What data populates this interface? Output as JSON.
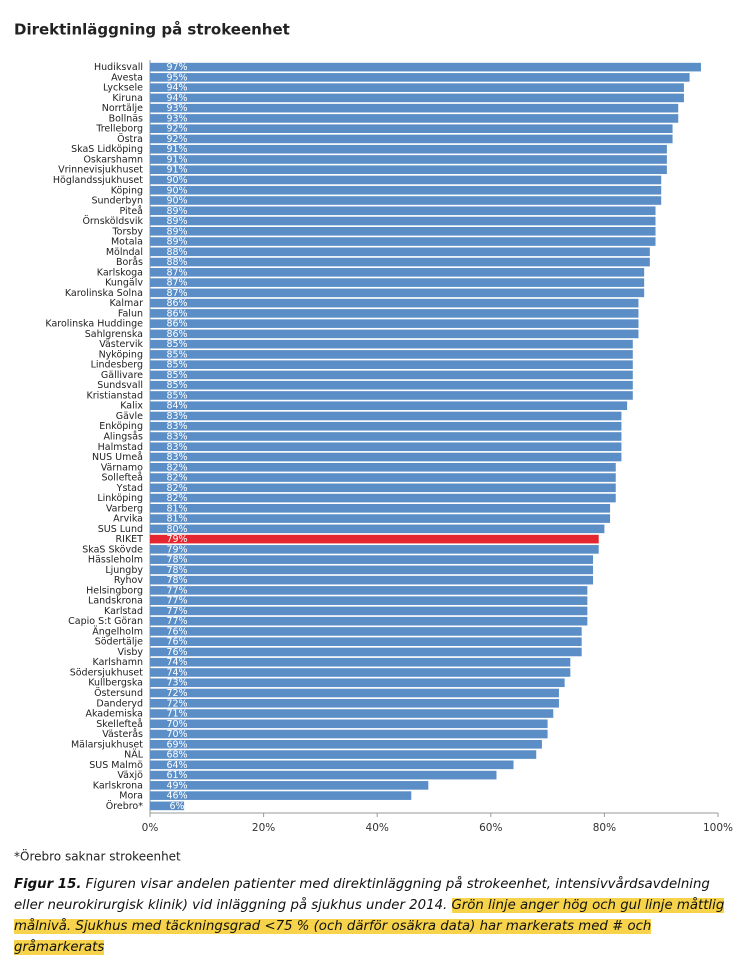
{
  "chart_data": {
    "type": "barh",
    "title": "Direktinläggning på strokeenhet",
    "categories": [
      "Hudiksvall",
      "Avesta",
      "Lycksele",
      "Kiruna",
      "Norrtälje",
      "Bollnäs",
      "Trelleborg",
      "Östra",
      "SkaS Lidköping",
      "Oskarshamn",
      "Vrinnevisjukhuset",
      "Höglandssjukhuset",
      "Köping",
      "Sunderbyn",
      "Piteå",
      "Örnsköldsvik",
      "Torsby",
      "Motala",
      "Mölndal",
      "Borås",
      "Karlskoga",
      "Kungälv",
      "Karolinska Solna",
      "Kalmar",
      "Falun",
      "Karolinska Huddinge",
      "Sahlgrenska",
      "Västervik",
      "Nyköping",
      "Lindesberg",
      "Gällivare",
      "Sundsvall",
      "Kristianstad",
      "Kalix",
      "Gävle",
      "Enköping",
      "Alingsås",
      "Halmstad",
      "NUS Umeå",
      "Värnamo",
      "Sollefteå",
      "Ystad",
      "Linköping",
      "Varberg",
      "Arvika",
      "SUS Lund",
      "RIKET",
      "SkaS Skövde",
      "Hässleholm",
      "Ljungby",
      "Ryhov",
      "Helsingborg",
      "Landskrona",
      "Karlstad",
      "Capio S:t Göran",
      "Ängelholm",
      "Södertälje",
      "Visby",
      "Karlshamn",
      "Södersjukhuset",
      "Kullbergska",
      "Östersund",
      "Danderyd",
      "Akademiska",
      "Skellefteå",
      "Västerås",
      "Mälarsjukhuset",
      "NÄL",
      "SUS Malmö",
      "Växjö",
      "Karlskrona",
      "Mora",
      "Örebro*"
    ],
    "values": [
      97,
      95,
      94,
      94,
      93,
      93,
      92,
      92,
      91,
      91,
      91,
      90,
      90,
      90,
      89,
      89,
      89,
      89,
      88,
      88,
      87,
      87,
      87,
      86,
      86,
      86,
      86,
      85,
      85,
      85,
      85,
      85,
      85,
      84,
      83,
      83,
      83,
      83,
      83,
      82,
      82,
      82,
      82,
      81,
      81,
      80,
      79,
      79,
      78,
      78,
      78,
      77,
      77,
      77,
      77,
      76,
      76,
      76,
      74,
      74,
      73,
      72,
      72,
      71,
      70,
      70,
      69,
      68,
      64,
      61,
      49,
      46,
      6
    ],
    "value_labels": [
      "97%",
      "95%",
      "94%",
      "94%",
      "93%",
      "93%",
      "92%",
      "92%",
      "91%",
      "91%",
      "91%",
      "90%",
      "90%",
      "90%",
      "89%",
      "89%",
      "89%",
      "89%",
      "88%",
      "88%",
      "87%",
      "87%",
      "87%",
      "86%",
      "86%",
      "86%",
      "86%",
      "85%",
      "85%",
      "85%",
      "85%",
      "85%",
      "85%",
      "84%",
      "83%",
      "83%",
      "83%",
      "83%",
      "83%",
      "82%",
      "82%",
      "82%",
      "82%",
      "81%",
      "81%",
      "80%",
      "79%",
      "79%",
      "78%",
      "78%",
      "78%",
      "77%",
      "77%",
      "77%",
      "77%",
      "76%",
      "76%",
      "76%",
      "74%",
      "74%",
      "73%",
      "72%",
      "72%",
      "71%",
      "70%",
      "70%",
      "69%",
      "68%",
      "64%",
      "61%",
      "49%",
      "46%",
      "6%"
    ],
    "colors": [
      "#5b8ec6",
      "#5b8ec6",
      "#5b8ec6",
      "#5b8ec6",
      "#5b8ec6",
      "#5b8ec6",
      "#5b8ec6",
      "#5b8ec6",
      "#5b8ec6",
      "#5b8ec6",
      "#5b8ec6",
      "#5b8ec6",
      "#5b8ec6",
      "#5b8ec6",
      "#5b8ec6",
      "#5b8ec6",
      "#5b8ec6",
      "#5b8ec6",
      "#5b8ec6",
      "#5b8ec6",
      "#5b8ec6",
      "#5b8ec6",
      "#5b8ec6",
      "#5b8ec6",
      "#5b8ec6",
      "#5b8ec6",
      "#5b8ec6",
      "#5b8ec6",
      "#5b8ec6",
      "#5b8ec6",
      "#5b8ec6",
      "#5b8ec6",
      "#5b8ec6",
      "#5b8ec6",
      "#5b8ec6",
      "#5b8ec6",
      "#5b8ec6",
      "#5b8ec6",
      "#5b8ec6",
      "#5b8ec6",
      "#5b8ec6",
      "#5b8ec6",
      "#5b8ec6",
      "#5b8ec6",
      "#5b8ec6",
      "#5b8ec6",
      "#e3262f",
      "#5b8ec6",
      "#5b8ec6",
      "#5b8ec6",
      "#5b8ec6",
      "#5b8ec6",
      "#5b8ec6",
      "#5b8ec6",
      "#5b8ec6",
      "#5b8ec6",
      "#5b8ec6",
      "#5b8ec6",
      "#5b8ec6",
      "#5b8ec6",
      "#5b8ec6",
      "#5b8ec6",
      "#5b8ec6",
      "#5b8ec6",
      "#5b8ec6",
      "#5b8ec6",
      "#5b8ec6",
      "#5b8ec6",
      "#5b8ec6",
      "#5b8ec6",
      "#5b8ec6",
      "#5b8ec6",
      "#5b8ec6"
    ],
    "xlim": [
      0,
      100
    ],
    "xticks": [
      {
        "value": 0,
        "label": "0%"
      },
      {
        "value": 20,
        "label": "20%"
      },
      {
        "value": 40,
        "label": "40%"
      },
      {
        "value": 60,
        "label": "60%"
      },
      {
        "value": 80,
        "label": "80%"
      },
      {
        "value": 100,
        "label": "100%"
      }
    ],
    "grid": false,
    "footnote": "*Örebro saknar strokeenhet",
    "caption_label": "Figur 15.",
    "caption_text": "Figuren visar andelen patienter med direktinläggning på strokeenhet, intensivvårdsavdelning eller neurokirurgisk klinik) vid inläggning på sjukhus under 2014.",
    "caption_highlight": "Grön linje anger hög och gul linje måttlig målnivå. Sjukhus med täckningsgrad <75 % (och därför osäkra data) har markerats med # och gråmarkerats"
  }
}
